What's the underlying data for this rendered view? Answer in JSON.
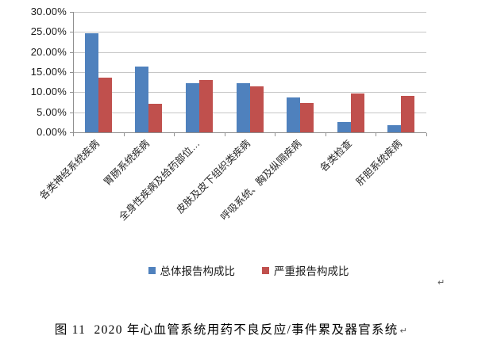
{
  "document": {
    "caption": "图 11  2020 年心血管系统用药不良反应/事件累及器官系统",
    "paragraph_mark": "↵"
  },
  "chart_data": {
    "type": "bar",
    "title": "",
    "categories": [
      "各类神经系统疾病",
      "胃肠系统疾病",
      "全身性疾病及给药部位…",
      "皮肤及皮下组织类疾病",
      "呼吸系统、胸及纵隔疾病",
      "各类检查",
      "肝胆系统疾病"
    ],
    "series": [
      {
        "name": "总体报告构成比",
        "color": "#4F81BD",
        "values": [
          24.6,
          16.3,
          12.3,
          12.2,
          8.6,
          2.5,
          1.8
        ]
      },
      {
        "name": "严重报告构成比",
        "color": "#C0504D",
        "values": [
          13.7,
          7.2,
          13.1,
          11.4,
          7.3,
          9.6,
          9.0
        ]
      }
    ],
    "value_unit": "%",
    "xlabel": "",
    "ylabel": "",
    "ylim": [
      0,
      30
    ],
    "y_tick_step": 5,
    "y_tick_labels": [
      "0.00%",
      "5.00%",
      "10.00%",
      "15.00%",
      "20.00%",
      "25.00%",
      "30.00%"
    ],
    "grid": true,
    "legend_position": "bottom",
    "colors": {
      "gridline": "#C6C6C6",
      "axis": "#8F8F8F",
      "text": "#1a1a1a",
      "paragraph_mark": "#5a5a5a"
    }
  }
}
